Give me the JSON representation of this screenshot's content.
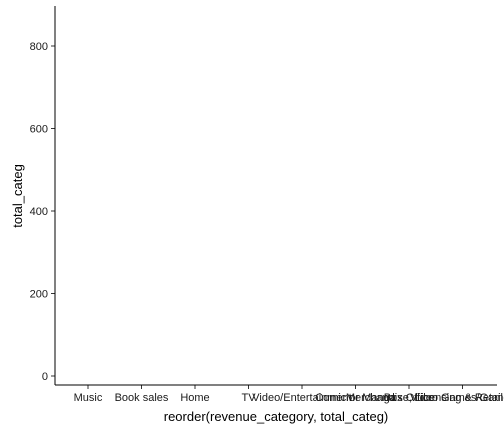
{
  "chart_data": {
    "type": "bar",
    "title": "",
    "xlabel": "reorder(revenue_category, total_categ)",
    "ylabel": "total_categ",
    "categories": [
      "Music",
      "Book sales",
      "Home",
      "TV",
      "Video/Entertainment",
      "Comic or Manga",
      "Box Office",
      "Video Games/Games",
      "Merchandise, Licensing & Retail"
    ],
    "values": [
      0,
      0,
      0,
      0,
      0,
      0,
      0,
      0,
      0
    ],
    "yticks": [
      0,
      200,
      400,
      600,
      800
    ],
    "ylim": [
      -25,
      900
    ],
    "grid": false,
    "legend": "none"
  }
}
